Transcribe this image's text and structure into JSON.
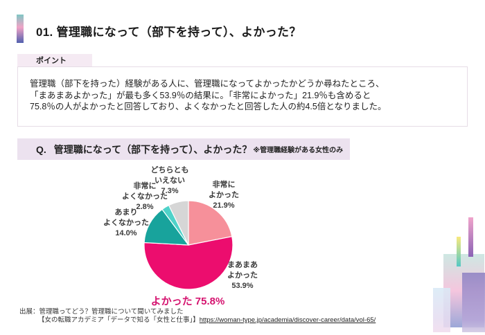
{
  "header": {
    "title": "01. 管理職になって（部下を持って）、よかった？"
  },
  "point": {
    "tab": "ポイント",
    "lines": [
      "管理職（部下を持った）経験がある人に、管理職になってよかったかどうか尋ねたところ、",
      "「まあまあよかった」が最も多く53.9％の結果に。「非常によかった」21.9％も含めると",
      "75.8％の人がよかったと回答しており、よくなかったと回答した人の約4.5倍となりました。"
    ]
  },
  "question": {
    "prefix": "Q.",
    "text": "管理職になって（部下を持って）、よかった？",
    "note": "※管理職経験がある女性のみ"
  },
  "chart_data": {
    "type": "pie",
    "title": "管理職になって（部下を持って）、よかった？",
    "start_angle_deg": -90,
    "direction": "clockwise",
    "legend_position": "around-slices",
    "slices": [
      {
        "label": "非常によかった",
        "label_lines": [
          "非常に",
          "よかった"
        ],
        "value": 21.9,
        "display": "21.9%",
        "color": "#f6909a"
      },
      {
        "label": "まあまあよかった",
        "label_lines": [
          "まあまあ",
          "よかった"
        ],
        "value": 53.9,
        "display": "53.9%",
        "color": "#ec0d6e"
      },
      {
        "label": "あまりよくなかった",
        "label_lines": [
          "あまり",
          "よくなかった"
        ],
        "value": 14.0,
        "display": "14.0%",
        "color": "#18a39c"
      },
      {
        "label": "非常によくなかった",
        "label_lines": [
          "非常に",
          "よくなかった"
        ],
        "value": 2.8,
        "display": "2.8%",
        "color": "#4fd2c9"
      },
      {
        "label": "どちらともいえない",
        "label_lines": [
          "どちらとも",
          "いえない"
        ],
        "value": 7.3,
        "display": "7.3%",
        "color": "#d6d6d6"
      }
    ],
    "callout": {
      "text": "よかった 75.8%",
      "color": "#d5136f"
    }
  },
  "source": {
    "line1": "出展：管理職ってどう？管理職について聞いてみました",
    "line2_prefix": "【女の転職アカデミア「データで知る「女性と仕事」】",
    "link": "https://woman-type.jp/academia/discover-career/data/vol-65/"
  },
  "theme": {
    "accent_gradient": [
      "#7fc7c4",
      "#f0a3c6",
      "#5160ae"
    ],
    "point_tab_bg": "#f5eaf3",
    "question_bar_bg": "#ece2ef",
    "magenta": "#d5136f"
  }
}
